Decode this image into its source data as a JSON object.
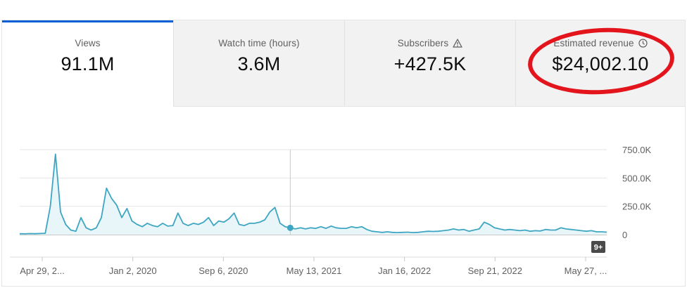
{
  "metrics": {
    "views": {
      "label": "Views",
      "value": "91.1M"
    },
    "watch_time": {
      "label": "Watch time (hours)",
      "value": "3.6M"
    },
    "subscribers": {
      "label": "Subscribers",
      "value": "+427.5K",
      "icon": "warning-triangle-icon"
    },
    "revenue": {
      "label": "Estimated revenue",
      "value": "$24,002.10",
      "icon": "clock-icon"
    }
  },
  "colors": {
    "accent": "#065fd4",
    "series": "#3ea6c2",
    "fill": "#e8f6f9",
    "highlight": "#e3141b"
  },
  "badge": {
    "label": "9+"
  },
  "chart_data": {
    "type": "area",
    "title": "Views",
    "x_tick_labels": [
      "Apr 29, 2...",
      "Jan 2, 2020",
      "Sep 6, 2020",
      "May 13, 2021",
      "Jan 16, 2022",
      "Sep 21, 2022",
      "May 27, ..."
    ],
    "y_tick_labels": [
      "750.0K",
      "500.0K",
      "250.0K",
      "0"
    ],
    "ylim": [
      0,
      750000
    ],
    "grid": true,
    "hover_marker_index": 53,
    "series": [
      {
        "name": "Views",
        "values": [
          8000,
          7000,
          9000,
          8000,
          10000,
          12000,
          250000,
          710000,
          200000,
          90000,
          40000,
          30000,
          150000,
          60000,
          40000,
          60000,
          150000,
          410000,
          320000,
          260000,
          150000,
          230000,
          120000,
          90000,
          70000,
          100000,
          80000,
          70000,
          100000,
          75000,
          80000,
          190000,
          100000,
          80000,
          100000,
          90000,
          110000,
          150000,
          80000,
          120000,
          110000,
          140000,
          190000,
          90000,
          80000,
          100000,
          100000,
          110000,
          130000,
          200000,
          240000,
          100000,
          70000,
          60000,
          50000,
          60000,
          50000,
          60000,
          55000,
          70000,
          55000,
          75000,
          60000,
          55000,
          55000,
          70000,
          60000,
          70000,
          45000,
          30000,
          25000,
          20000,
          25000,
          20000,
          18000,
          20000,
          22000,
          18000,
          20000,
          25000,
          30000,
          28000,
          30000,
          35000,
          40000,
          50000,
          40000,
          45000,
          30000,
          40000,
          50000,
          110000,
          90000,
          60000,
          50000,
          40000,
          45000,
          40000,
          35000,
          40000,
          30000,
          35000,
          32000,
          45000,
          40000,
          40000,
          60000,
          50000,
          45000,
          40000,
          35000,
          30000,
          35000,
          25000,
          25000,
          22000
        ]
      }
    ]
  }
}
